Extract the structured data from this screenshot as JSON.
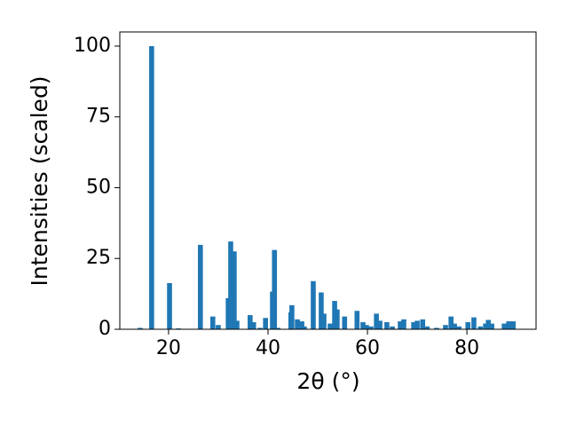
{
  "chart_data": {
    "type": "bar",
    "x_label": "2θ (°)",
    "y_label": "Intensities (scaled)",
    "x": [
      14.3,
      16.6,
      20.2,
      22,
      26.4,
      28.9,
      30,
      32,
      32.5,
      33.2,
      33.75,
      36.4,
      37.1,
      38.4,
      39.5,
      40.9,
      41.3,
      42,
      44.6,
      44.8,
      45.9,
      46.8,
      47.3,
      49.1,
      50.7,
      51.25,
      52.5,
      53.4,
      53.9,
      55.4,
      57.9,
      59.1,
      59.8,
      60.7,
      61.8,
      62.5,
      63.9,
      65,
      66.6,
      67.3,
      69.3,
      70,
      71.1,
      72,
      73.9,
      75.7,
      76.8,
      77.5,
      78.4,
      80.2,
      81.4,
      82.7,
      83.75,
      84.3,
      85,
      87.5,
      88.4,
      89.3
    ],
    "values": [
      0.5,
      100,
      16.3,
      0.3,
      29.8,
      4.5,
      1.5,
      11,
      31,
      27.5,
      3,
      5,
      2.5,
      0.5,
      4,
      13.3,
      28,
      0.5,
      6,
      8.5,
      3.5,
      2.8,
      1,
      17,
      13,
      5.5,
      2,
      10,
      7,
      4.5,
      6.5,
      2.5,
      1.5,
      1,
      5.5,
      3,
      2.5,
      1,
      2.8,
      3.5,
      2.5,
      3,
      3.5,
      1,
      0.5,
      1.5,
      4.5,
      2,
      1,
      2.5,
      4.2,
      1,
      2,
      3.3,
      2,
      2,
      2.8,
      2.8
    ],
    "color": "#1f77b4",
    "xlim": [
      10.2,
      93.9
    ],
    "xticks": [
      20,
      40,
      60,
      80
    ],
    "ylim": [
      0,
      105
    ],
    "yticks": [
      0,
      25,
      50,
      75,
      100
    ],
    "grid": false
  }
}
